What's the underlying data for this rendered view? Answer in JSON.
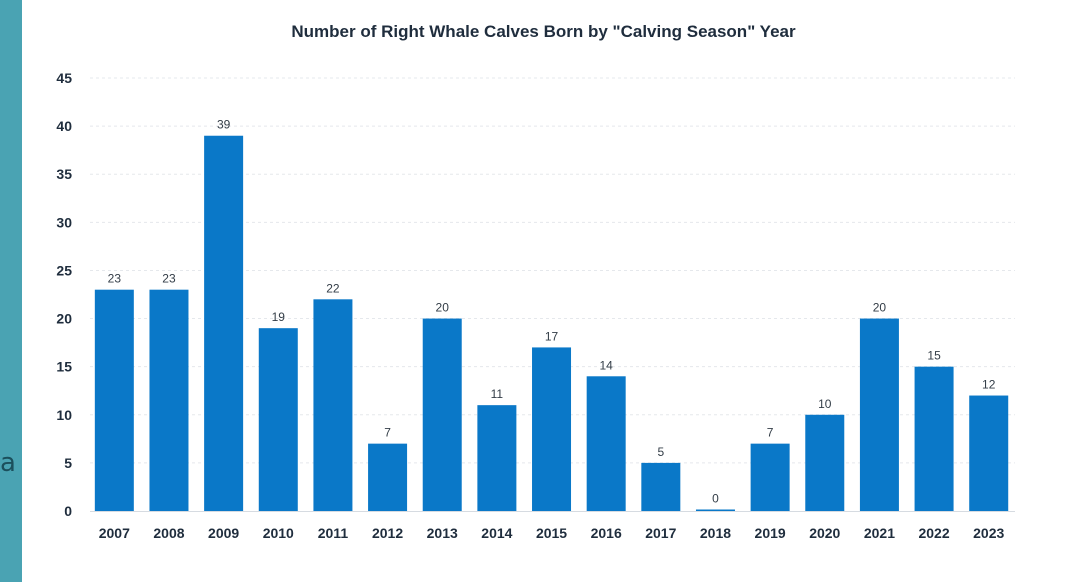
{
  "side_fragment": "a",
  "colors": {
    "bar": "#0a78c8",
    "frame": "#4aa3b3",
    "grid": "#e5e8ec",
    "axis_text": "#1f2d3d",
    "label_text": "#333d47"
  },
  "chart_data": {
    "type": "bar",
    "title": "Number of Right Whale Calves Born by \"Calving Season\" Year",
    "xlabel": "",
    "ylabel": "",
    "categories": [
      "2007",
      "2008",
      "2009",
      "2010",
      "2011",
      "2012",
      "2013",
      "2014",
      "2015",
      "2016",
      "2017",
      "2018",
      "2019",
      "2020",
      "2021",
      "2022",
      "2023"
    ],
    "values": [
      23,
      23,
      39,
      19,
      22,
      7,
      20,
      11,
      17,
      14,
      5,
      0,
      7,
      10,
      20,
      15,
      12
    ],
    "ylim": [
      0,
      45
    ],
    "yticks": [
      0,
      5,
      10,
      15,
      20,
      25,
      30,
      35,
      40,
      45
    ],
    "grid": true,
    "data_labels": true,
    "legend": "none"
  }
}
